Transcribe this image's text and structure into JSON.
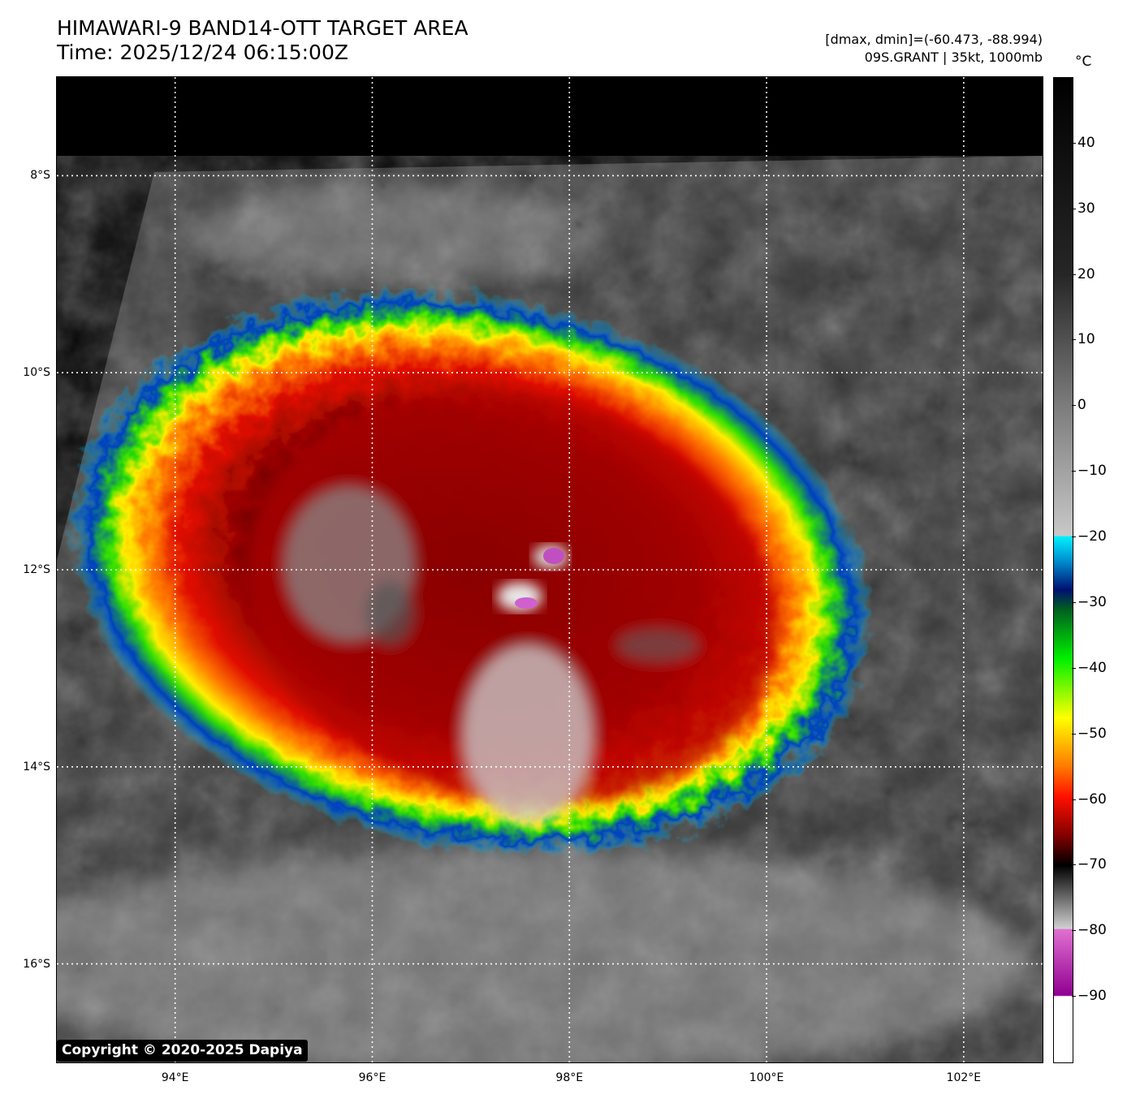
{
  "title": {
    "line1": "HIMAWARI-9 BAND14-OTT TARGET AREA",
    "line2": "Time: 2025/12/24 06:15:00Z"
  },
  "meta": {
    "line1": "[dmax, dmin]=(-60.473, -88.994)",
    "line2": "09S.GRANT | 35kt, 1000mb"
  },
  "map": {
    "lat_labels": [
      "8°S",
      "10°S",
      "12°S",
      "14°S",
      "16°S"
    ],
    "lon_labels": [
      "94°E",
      "96°E",
      "98°E",
      "100°E",
      "102°E"
    ],
    "lat_values": [
      -8,
      -10,
      -12,
      -14,
      -16
    ],
    "lon_values": [
      94,
      96,
      98,
      100,
      102
    ],
    "lat_range": [
      -17.0,
      -7.0
    ],
    "lon_range": [
      92.8,
      102.8
    ],
    "copyright": "Copyright © 2020-2025 Dapiya",
    "grid": "dotted white"
  },
  "colorbar": {
    "unit": "°C",
    "ticks": [
      "40",
      "30",
      "20",
      "10",
      "0",
      "−10",
      "−20",
      "−30",
      "−40",
      "−50",
      "−60",
      "−70",
      "−80",
      "−90"
    ],
    "tick_values": [
      40,
      30,
      20,
      10,
      0,
      -10,
      -20,
      -30,
      -40,
      -50,
      -60,
      -70,
      -80,
      -90
    ],
    "range": [
      -100,
      50
    ]
  }
}
